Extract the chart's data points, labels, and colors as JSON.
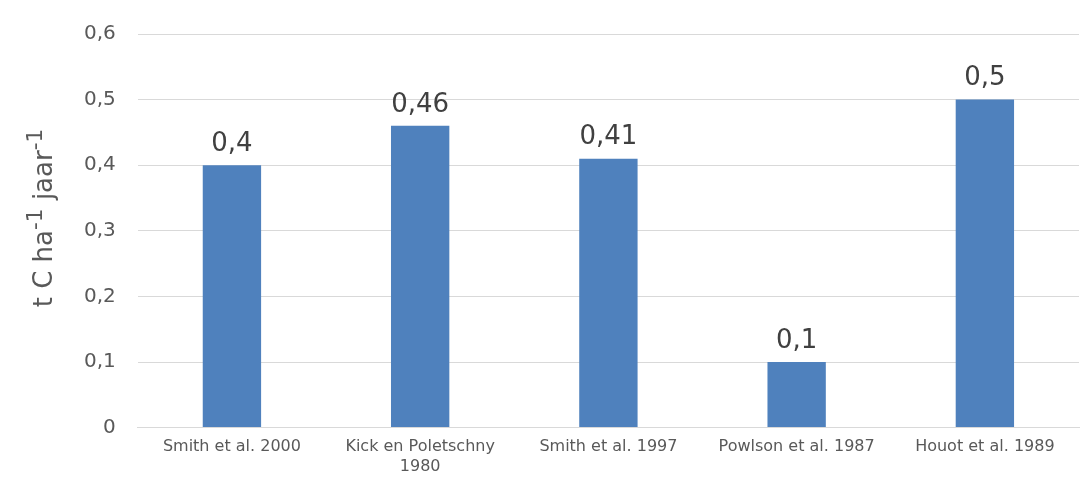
{
  "chart_data": {
    "type": "bar",
    "ylabel": "t C ha$^{-1}$ jaar$^{-1}$",
    "categories": [
      "Smith et al. 2000",
      "Kick en Poletschny 1980",
      "Smith et al. 1997",
      "Powlson et al. 1987",
      "Houot et al. 1989"
    ],
    "values": [
      0.4,
      0.46,
      0.41,
      0.1,
      0.5
    ],
    "value_labels": [
      "0,4",
      "0,46",
      "0,41",
      "0,1",
      "0,5"
    ],
    "color": "#4f81bd",
    "ylim": [
      0,
      0.6
    ],
    "yticks": [
      {
        "value": 0,
        "label": "0"
      },
      {
        "value": 0.1,
        "label": "0,1"
      },
      {
        "value": 0.2,
        "label": "0,2"
      },
      {
        "value": 0.3,
        "label": "0,3"
      },
      {
        "value": 0.4,
        "label": "0,4"
      },
      {
        "value": 0.5,
        "label": "0,5"
      },
      {
        "value": 0.6,
        "label": "0,6"
      }
    ],
    "grid": "y",
    "legend": false
  }
}
